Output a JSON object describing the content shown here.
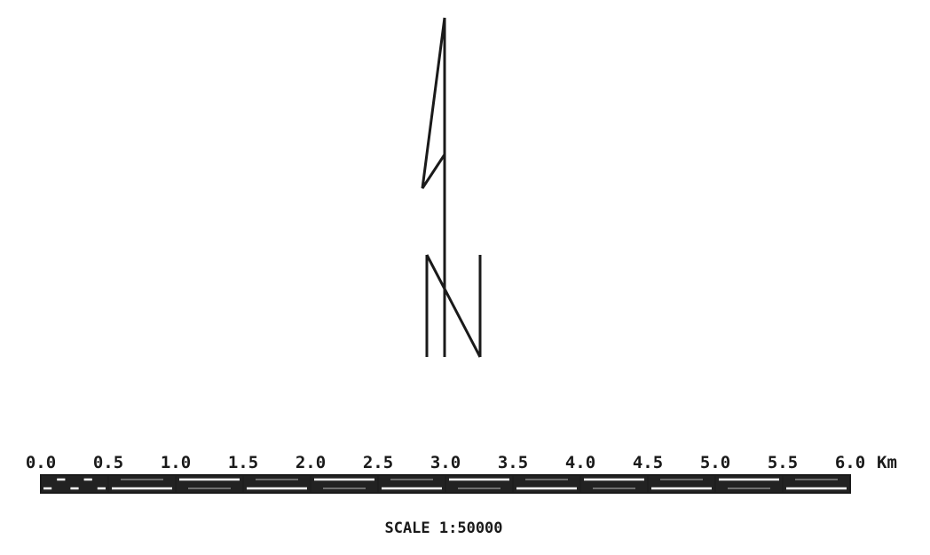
{
  "north_arrow": {
    "label": "N"
  },
  "scale_bar": {
    "unit": "Km",
    "tick_labels": [
      "0.0",
      "0.5",
      "1.0",
      "1.5",
      "2.0",
      "2.5",
      "3.0",
      "3.5",
      "4.0",
      "4.5",
      "5.0",
      "5.5",
      "6.0"
    ],
    "min_km": 0,
    "max_km": 6,
    "segment_km": 0.5,
    "first_segment_subdivisions": 5,
    "scale_text": "SCALE 1:50000"
  },
  "colors": {
    "ink": "#1a1a1a",
    "bar_fill": "#222222",
    "bar_highlight": "#ffffff"
  }
}
